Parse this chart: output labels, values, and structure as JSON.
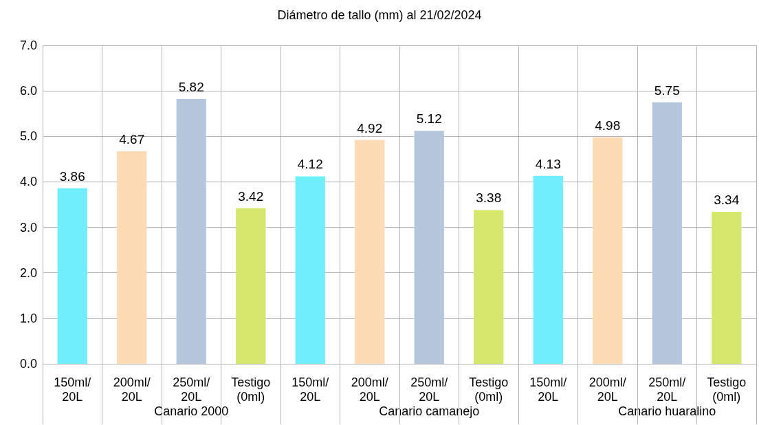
{
  "chart_data": {
    "type": "bar",
    "title": "Diámetro de tallo (mm) al 21/02/2024",
    "categories": [
      "150ml/20L",
      "200ml/20L",
      "250ml/20L",
      "Testigo (0ml)",
      "150ml/20L",
      "200ml/20L",
      "250ml/20L",
      "Testigo (0ml)",
      "150ml/20L",
      "200ml/20L",
      "250ml/20L",
      "Testigo (0ml)"
    ],
    "values": [
      3.86,
      4.67,
      5.82,
      3.42,
      4.12,
      4.92,
      5.12,
      3.38,
      4.13,
      4.98,
      5.75,
      3.34
    ],
    "colors": [
      "#6feefc",
      "#fddbb5",
      "#b4c7dd",
      "#d5e86b",
      "#6feefc",
      "#fddbb5",
      "#b4c7dd",
      "#d5e86b",
      "#6feefc",
      "#fddbb5",
      "#b4c7dd",
      "#d5e86b"
    ],
    "ylim": [
      0,
      7
    ],
    "yticks": [
      {
        "value": 0,
        "label": "0.0"
      },
      {
        "value": 1,
        "label": "1.0"
      },
      {
        "value": 2,
        "label": "2.0"
      },
      {
        "value": 3,
        "label": "3.0"
      },
      {
        "value": 4,
        "label": "4.0"
      },
      {
        "value": 5,
        "label": "5.0"
      },
      {
        "value": 6,
        "label": "6.0"
      },
      {
        "value": 7,
        "label": "7.0"
      }
    ],
    "grid": true,
    "data_labels": true,
    "annotations": [
      "Canario 2000",
      "Canario camanejo",
      "Canario huaralino"
    ]
  }
}
